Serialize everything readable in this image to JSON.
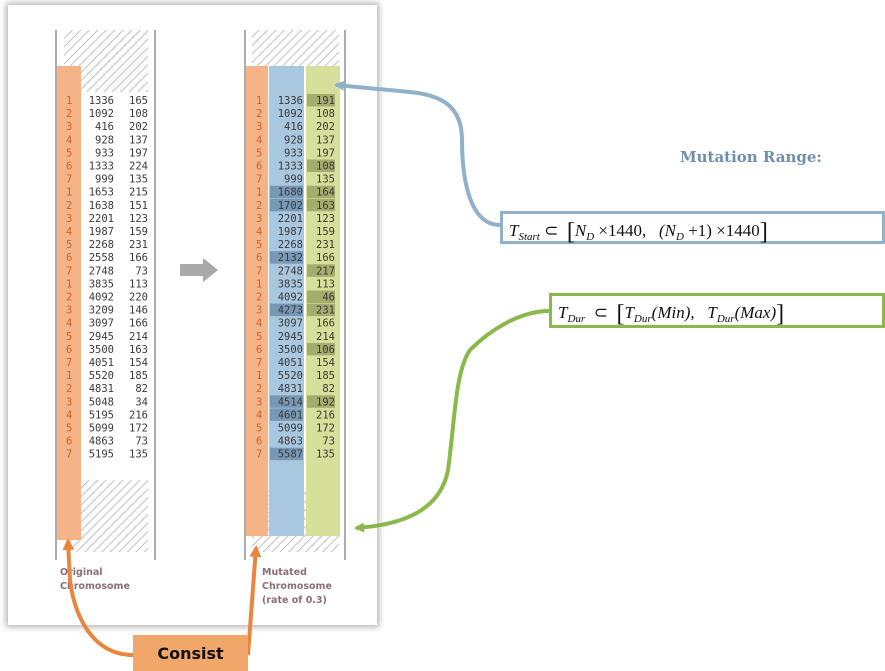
{
  "original": {
    "caption": [
      "Original",
      "Chromosome"
    ],
    "rows": [
      [
        "1",
        "1336",
        "165"
      ],
      [
        "2",
        "1092",
        "108"
      ],
      [
        "3",
        "416",
        "202"
      ],
      [
        "4",
        "928",
        "137"
      ],
      [
        "5",
        "933",
        "197"
      ],
      [
        "6",
        "1333",
        "224"
      ],
      [
        "7",
        "999",
        "135"
      ],
      [
        "1",
        "1653",
        "215"
      ],
      [
        "2",
        "1638",
        "151"
      ],
      [
        "3",
        "2201",
        "123"
      ],
      [
        "4",
        "1987",
        "159"
      ],
      [
        "5",
        "2268",
        "231"
      ],
      [
        "6",
        "2558",
        "166"
      ],
      [
        "7",
        "2748",
        "73"
      ],
      [
        "1",
        "3835",
        "113"
      ],
      [
        "2",
        "4092",
        "220"
      ],
      [
        "3",
        "3209",
        "146"
      ],
      [
        "4",
        "3097",
        "166"
      ],
      [
        "5",
        "2945",
        "214"
      ],
      [
        "6",
        "3500",
        "163"
      ],
      [
        "7",
        "4051",
        "154"
      ],
      [
        "1",
        "5520",
        "185"
      ],
      [
        "2",
        "4831",
        "82"
      ],
      [
        "3",
        "5048",
        "34"
      ],
      [
        "4",
        "5195",
        "216"
      ],
      [
        "5",
        "5099",
        "172"
      ],
      [
        "6",
        "4863",
        "73"
      ],
      [
        "7",
        "5195",
        "135"
      ]
    ]
  },
  "mutated": {
    "caption": [
      "Mutated",
      "Chromosome",
      "(rate of 0.3)"
    ],
    "rows": [
      [
        "1",
        "1336",
        "191"
      ],
      [
        "2",
        "1092",
        "108"
      ],
      [
        "3",
        "416",
        "202"
      ],
      [
        "4",
        "928",
        "137"
      ],
      [
        "5",
        "933",
        "197"
      ],
      [
        "6",
        "1333",
        "108"
      ],
      [
        "7",
        "999",
        "135"
      ],
      [
        "1",
        "1680",
        "164"
      ],
      [
        "2",
        "1702",
        "163"
      ],
      [
        "3",
        "2201",
        "123"
      ],
      [
        "4",
        "1987",
        "159"
      ],
      [
        "5",
        "2268",
        "231"
      ],
      [
        "6",
        "2132",
        "166"
      ],
      [
        "7",
        "2748",
        "217"
      ],
      [
        "1",
        "3835",
        "113"
      ],
      [
        "2",
        "4092",
        "46"
      ],
      [
        "3",
        "4273",
        "231"
      ],
      [
        "4",
        "3097",
        "166"
      ],
      [
        "5",
        "2945",
        "214"
      ],
      [
        "6",
        "3500",
        "106"
      ],
      [
        "7",
        "4051",
        "154"
      ],
      [
        "1",
        "5520",
        "185"
      ],
      [
        "2",
        "4831",
        "82"
      ],
      [
        "3",
        "4514",
        "192"
      ],
      [
        "4",
        "4601",
        "216"
      ],
      [
        "5",
        "5099",
        "172"
      ],
      [
        "6",
        "4863",
        "73"
      ],
      [
        "7",
        "5587",
        "135"
      ]
    ],
    "mutated_start_rows": [
      8,
      9,
      13,
      17,
      24,
      25,
      28
    ],
    "mutated_dur_rows": [
      1,
      6,
      8,
      9,
      14,
      16,
      17,
      20,
      24
    ]
  },
  "mutation_range_title": "Mutation Range:",
  "formula_start": {
    "lhs": "T",
    "lhs_sub": "Start",
    "subset": "⊂",
    "a": "N",
    "a_sub": "D",
    "a_rest": " ×1440,",
    "b": "(N",
    "b_sub": "D",
    "b_rest": " +1) ×1440"
  },
  "formula_dur": {
    "lhs": "T",
    "lhs_sub": "Dur",
    "subset": "⊂",
    "a": "T",
    "a_sub": "Dur",
    "a_rest": "(Min),",
    "b": "T",
    "b_sub": "Dur",
    "b_rest": "(Max)"
  },
  "consist_label": "Consist",
  "colors": {
    "index_col": "#f5b488",
    "start_col": "#a9c7de",
    "dur_col": "#d7e09a",
    "start_mut": "#7899b6",
    "dur_mut": "#a5ac6e",
    "arrow_blue": "#8fb1c9",
    "arrow_green": "#8ab84a",
    "arrow_orange": "#e8863e"
  }
}
